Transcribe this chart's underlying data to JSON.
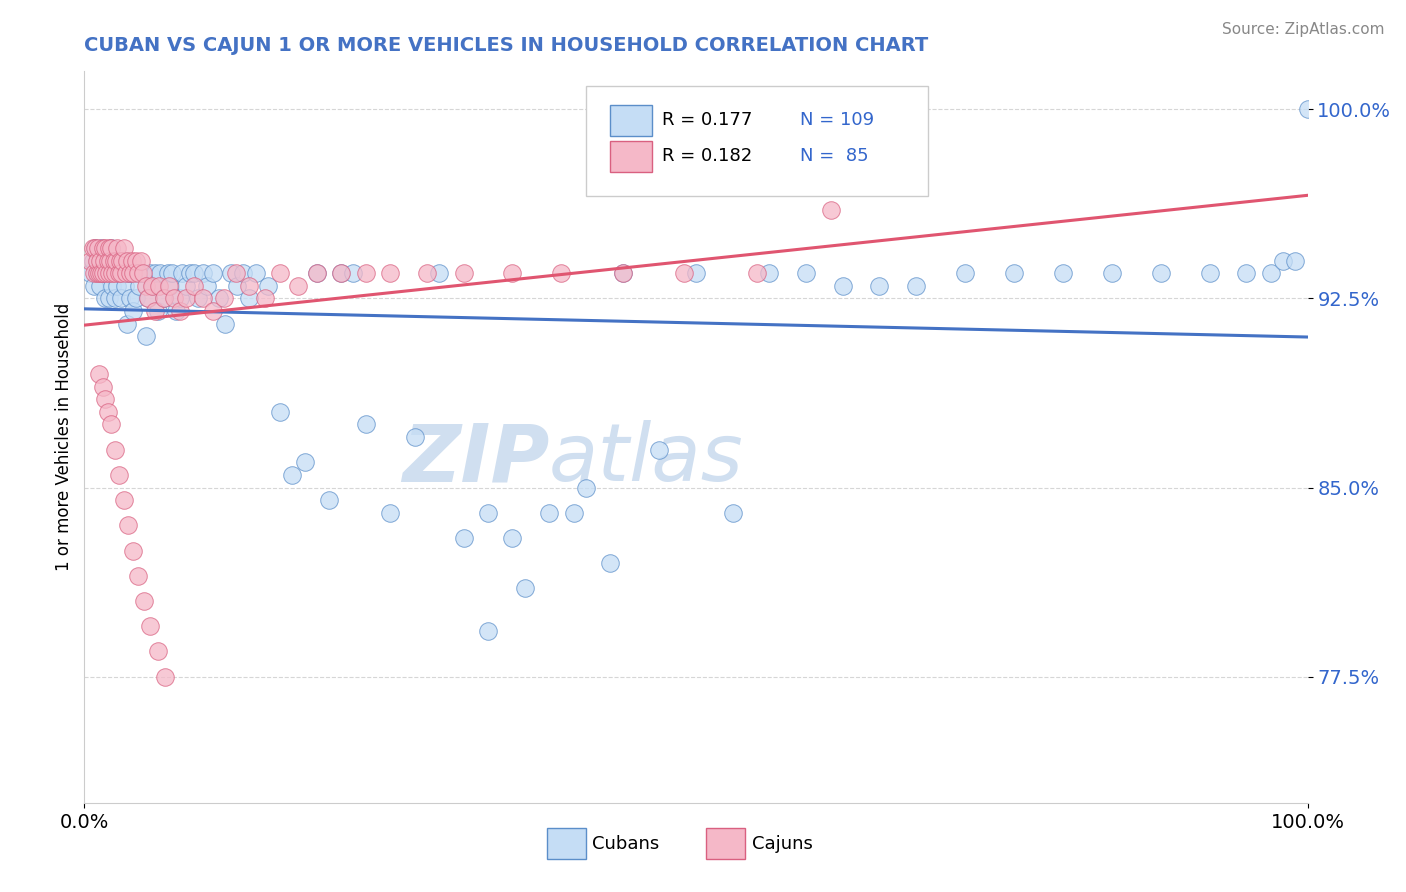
{
  "title": "CUBAN VS CAJUN 1 OR MORE VEHICLES IN HOUSEHOLD CORRELATION CHART",
  "source_text": "Source: ZipAtlas.com",
  "ylabel": "1 or more Vehicles in Household",
  "x_min": 0.0,
  "x_max": 1.0,
  "y_min": 0.725,
  "y_max": 1.015,
  "y_ticks": [
    0.775,
    0.85,
    0.925,
    1.0
  ],
  "y_tick_labels": [
    "77.5%",
    "85.0%",
    "92.5%",
    "100.0%"
  ],
  "x_tick_labels": [
    "0.0%",
    "100.0%"
  ],
  "legend_label1": "Cubans",
  "legend_label2": "Cajuns",
  "legend_R1": "R = 0.177",
  "legend_N1": "N = 109",
  "legend_R2": "R = 0.182",
  "legend_N2": "N =  85",
  "color_cubans_fill": "#c5ddf5",
  "color_cubans_edge": "#5b8ec9",
  "color_cajuns_fill": "#f5b8c8",
  "color_cajuns_edge": "#d96080",
  "color_line_cubans": "#4472c4",
  "color_line_cajuns": "#e05570",
  "watermark_color": "#d0dff0",
  "title_color": "#4472c4",
  "tick_color": "#3366cc",
  "source_color": "#888888",
  "cubans_x": [
    0.005,
    0.007,
    0.008,
    0.009,
    0.01,
    0.01,
    0.012,
    0.013,
    0.014,
    0.015,
    0.015,
    0.016,
    0.017,
    0.018,
    0.019,
    0.02,
    0.02,
    0.02,
    0.021,
    0.022,
    0.023,
    0.025,
    0.025,
    0.026,
    0.027,
    0.028,
    0.03,
    0.031,
    0.032,
    0.033,
    0.035,
    0.036,
    0.037,
    0.038,
    0.04,
    0.041,
    0.042,
    0.044,
    0.045,
    0.047,
    0.05,
    0.052,
    0.054,
    0.056,
    0.058,
    0.06,
    0.062,
    0.065,
    0.068,
    0.07,
    0.072,
    0.075,
    0.078,
    0.08,
    0.083,
    0.086,
    0.09,
    0.093,
    0.097,
    0.1,
    0.105,
    0.11,
    0.115,
    0.12,
    0.125,
    0.13,
    0.135,
    0.14,
    0.15,
    0.16,
    0.17,
    0.18,
    0.19,
    0.2,
    0.21,
    0.22,
    0.23,
    0.25,
    0.27,
    0.29,
    0.31,
    0.33,
    0.35,
    0.38,
    0.41,
    0.44,
    0.47,
    0.5,
    0.53,
    0.56,
    0.59,
    0.62,
    0.65,
    0.68,
    0.72,
    0.76,
    0.8,
    0.84,
    0.88,
    0.92,
    0.95,
    0.97,
    0.98,
    0.99,
    1.0,
    0.33,
    0.36,
    0.4,
    0.43
  ],
  "cubans_y": [
    0.935,
    0.94,
    0.93,
    0.945,
    0.935,
    0.94,
    0.935,
    0.93,
    0.945,
    0.935,
    0.94,
    0.935,
    0.925,
    0.935,
    0.94,
    0.94,
    0.935,
    0.925,
    0.935,
    0.945,
    0.93,
    0.925,
    0.935,
    0.94,
    0.93,
    0.935,
    0.925,
    0.935,
    0.94,
    0.93,
    0.915,
    0.935,
    0.925,
    0.935,
    0.92,
    0.935,
    0.925,
    0.935,
    0.93,
    0.935,
    0.91,
    0.925,
    0.935,
    0.93,
    0.935,
    0.92,
    0.935,
    0.925,
    0.935,
    0.93,
    0.935,
    0.92,
    0.925,
    0.935,
    0.93,
    0.935,
    0.935,
    0.925,
    0.935,
    0.93,
    0.935,
    0.925,
    0.915,
    0.935,
    0.93,
    0.935,
    0.925,
    0.935,
    0.93,
    0.88,
    0.855,
    0.86,
    0.935,
    0.845,
    0.935,
    0.935,
    0.875,
    0.84,
    0.87,
    0.935,
    0.83,
    0.84,
    0.83,
    0.84,
    0.85,
    0.935,
    0.865,
    0.935,
    0.84,
    0.935,
    0.935,
    0.93,
    0.93,
    0.93,
    0.935,
    0.935,
    0.935,
    0.935,
    0.935,
    0.935,
    0.935,
    0.935,
    0.94,
    0.94,
    1.0,
    0.793,
    0.81,
    0.84,
    0.82
  ],
  "cajuns_x": [
    0.005,
    0.007,
    0.008,
    0.009,
    0.01,
    0.01,
    0.011,
    0.012,
    0.013,
    0.014,
    0.015,
    0.015,
    0.016,
    0.017,
    0.018,
    0.019,
    0.02,
    0.02,
    0.021,
    0.022,
    0.023,
    0.024,
    0.025,
    0.026,
    0.027,
    0.028,
    0.029,
    0.03,
    0.031,
    0.032,
    0.034,
    0.035,
    0.037,
    0.039,
    0.04,
    0.042,
    0.044,
    0.046,
    0.048,
    0.05,
    0.052,
    0.055,
    0.058,
    0.061,
    0.065,
    0.069,
    0.073,
    0.078,
    0.083,
    0.09,
    0.097,
    0.105,
    0.114,
    0.124,
    0.135,
    0.148,
    0.16,
    0.175,
    0.19,
    0.21,
    0.23,
    0.25,
    0.28,
    0.31,
    0.35,
    0.39,
    0.44,
    0.49,
    0.55,
    0.61,
    0.012,
    0.015,
    0.017,
    0.019,
    0.022,
    0.025,
    0.028,
    0.032,
    0.036,
    0.04,
    0.044,
    0.049,
    0.054,
    0.06,
    0.066
  ],
  "cajuns_y": [
    0.94,
    0.945,
    0.935,
    0.945,
    0.935,
    0.94,
    0.945,
    0.935,
    0.94,
    0.935,
    0.945,
    0.935,
    0.94,
    0.945,
    0.935,
    0.94,
    0.945,
    0.935,
    0.94,
    0.945,
    0.935,
    0.94,
    0.935,
    0.94,
    0.945,
    0.935,
    0.94,
    0.935,
    0.94,
    0.945,
    0.935,
    0.94,
    0.935,
    0.94,
    0.935,
    0.94,
    0.935,
    0.94,
    0.935,
    0.93,
    0.925,
    0.93,
    0.92,
    0.93,
    0.925,
    0.93,
    0.925,
    0.92,
    0.925,
    0.93,
    0.925,
    0.92,
    0.925,
    0.935,
    0.93,
    0.925,
    0.935,
    0.93,
    0.935,
    0.935,
    0.935,
    0.935,
    0.935,
    0.935,
    0.935,
    0.935,
    0.935,
    0.935,
    0.935,
    0.96,
    0.895,
    0.89,
    0.885,
    0.88,
    0.875,
    0.865,
    0.855,
    0.845,
    0.835,
    0.825,
    0.815,
    0.805,
    0.795,
    0.785,
    0.775
  ]
}
